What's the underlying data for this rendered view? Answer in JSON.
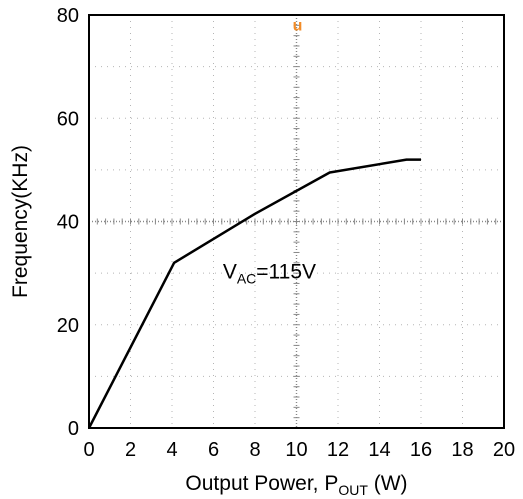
{
  "chart_data": {
    "type": "line",
    "title": "",
    "xlabel": {
      "main": "Output Power, P",
      "sub": "OUT",
      "tail": " (W)"
    },
    "ylabel": "Frequency(KHz)",
    "xlim": [
      0,
      20
    ],
    "ylim": [
      0,
      80
    ],
    "xticks": [
      "0",
      "2",
      "4",
      "6",
      "8",
      "10",
      "12",
      "14",
      "16",
      "18",
      "20"
    ],
    "yticks": [
      "0",
      "20",
      "40",
      "60",
      "80"
    ],
    "grid": true,
    "series": [
      {
        "x": [
          0,
          4.1,
          8,
          11.6,
          15.3,
          16.0
        ],
        "y": [
          0,
          32,
          41.5,
          49.5,
          52,
          52
        ],
        "color": "#000000"
      }
    ],
    "annotation": {
      "main": "V",
      "sub": "AC",
      "tail": "=115V",
      "x": 6.45,
      "y": 29
    },
    "marker": {
      "text": "u",
      "x": 10.05,
      "y": 77,
      "color": "#f28c28"
    }
  }
}
